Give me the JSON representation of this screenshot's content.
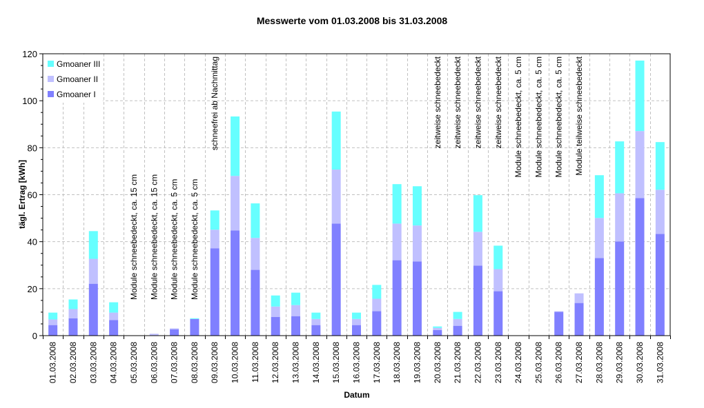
{
  "chart_data": {
    "type": "bar",
    "stacked": true,
    "title": "Messwerte vom 01.03.2008 bis 31.03.2008",
    "xlabel": "Datum",
    "ylabel": "tägl. Ertrag [kWh]",
    "ylim": [
      0,
      120
    ],
    "yticks": [
      0,
      20,
      40,
      60,
      80,
      100,
      120
    ],
    "grid": true,
    "legend_position": "top-left inside",
    "categories": [
      "01.03.2008",
      "02.03.2008",
      "03.03.2008",
      "04.03.2008",
      "05.03.2008",
      "06.03.2008",
      "07.03.2008",
      "08.03.2008",
      "09.03.2008",
      "10.03.2008",
      "11.03.2008",
      "12.03.2008",
      "13.03.2008",
      "14.03.2008",
      "15.03.2008",
      "16.03.2008",
      "17.03.2008",
      "18.03.2008",
      "19.03.2008",
      "20.03.2008",
      "21.03.2008",
      "22.03.2008",
      "23.03.2008",
      "24.03.2008",
      "25.03.2008",
      "26.03.2008",
      "27.03.2008",
      "28.03.2008",
      "29.03.2008",
      "30.03.2008",
      "31.03.2008"
    ],
    "series": [
      {
        "name": "Gmoaner I",
        "color": "#8080FF",
        "values": [
          4.5,
          7.4,
          22.1,
          6.6,
          0,
          0,
          2.7,
          7.1,
          37.2,
          44.8,
          28.0,
          8.0,
          8.3,
          4.5,
          47.7,
          4.5,
          10.4,
          32.1,
          31.6,
          2.4,
          4.2,
          29.8,
          18.9,
          0,
          0,
          10.1,
          13.9,
          33.0,
          40.1,
          58.6,
          43.3
        ]
      },
      {
        "name": "Gmoaner II",
        "color": "#C0C0FF",
        "values": [
          2.4,
          3.9,
          10.6,
          3.2,
          0,
          0.8,
          0.4,
          0,
          7.9,
          23.2,
          13.6,
          4.4,
          4.7,
          2.6,
          23.0,
          2.6,
          5.3,
          15.6,
          15.3,
          0.9,
          2.9,
          14.4,
          9.4,
          0,
          0,
          0.3,
          4.1,
          17.1,
          20.5,
          28.5,
          18.8
        ]
      },
      {
        "name": "Gmoaner III",
        "color": "#66FFFF",
        "values": [
          2.9,
          4.1,
          11.8,
          4.4,
          0,
          0,
          0,
          0.3,
          8.2,
          25.3,
          14.7,
          4.7,
          5.3,
          2.7,
          24.7,
          2.7,
          5.9,
          16.8,
          16.7,
          0.6,
          3.0,
          15.6,
          10.0,
          0,
          0,
          0,
          0,
          18.2,
          22.1,
          30.0,
          20.3
        ]
      }
    ],
    "annotations": [
      {
        "index": 4,
        "text": "Module schneebedeckt, ca. 15 cm",
        "anchor": "bottom"
      },
      {
        "index": 5,
        "text": "Module schneebedeckt, ca. 15 cm",
        "anchor": "bottom"
      },
      {
        "index": 6,
        "text": "Module schneebedeckt, ca. 5 cm",
        "anchor": "bottom"
      },
      {
        "index": 7,
        "text": "Module schneebedeckt, ca. 5 cm",
        "anchor": "bottom"
      },
      {
        "index": 8,
        "text": "schneefrei ab Nachmittag",
        "anchor": "top"
      },
      {
        "index": 19,
        "text": "zeitweise schneebedeckt",
        "anchor": "top"
      },
      {
        "index": 20,
        "text": "zeitweise schneebedeckt",
        "anchor": "top"
      },
      {
        "index": 21,
        "text": "zeitweise schneebedeckt",
        "anchor": "top"
      },
      {
        "index": 22,
        "text": "zeitweise schneebedeckt",
        "anchor": "top"
      },
      {
        "index": 23,
        "text": "Module schneebedeckt, ca. 5 cm",
        "anchor": "top"
      },
      {
        "index": 24,
        "text": "Module schneebedeckt, ca. 5 cm",
        "anchor": "top"
      },
      {
        "index": 25,
        "text": "Module schneebedeckt, ca. 5 cm",
        "anchor": "top"
      },
      {
        "index": 26,
        "text": "Module teilweise schneebedeckt",
        "anchor": "top"
      }
    ],
    "legend": [
      "Gmoaner III",
      "Gmoaner II",
      "Gmoaner I"
    ]
  }
}
